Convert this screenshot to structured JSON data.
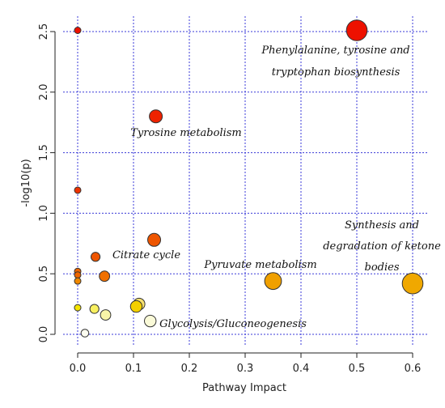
{
  "chart_data": {
    "type": "scatter",
    "xlabel": "Pathway Impact",
    "ylabel": "-log10(p)",
    "xlim": [
      -0.02,
      0.62
    ],
    "ylim": [
      -0.05,
      2.58
    ],
    "xticks": [
      0.0,
      0.1,
      0.2,
      0.3,
      0.4,
      0.5,
      0.6
    ],
    "yticks": [
      0.0,
      0.5,
      1.0,
      1.5,
      2.0,
      2.5
    ],
    "xtick_labels": [
      "0.0",
      "0.1",
      "0.2",
      "0.3",
      "0.4",
      "0.5",
      "0.6"
    ],
    "ytick_labels": [
      "0.0",
      "0.5",
      "1.0",
      "1.5",
      "2.0",
      "2.5"
    ],
    "grid": true,
    "points": [
      {
        "x": 0.5,
        "y": 2.51,
        "size": 1.6,
        "color": "#ee1100"
      },
      {
        "x": 0.0,
        "y": 2.51,
        "size": 0.5,
        "color": "#ee1100"
      },
      {
        "x": 0.14,
        "y": 1.8,
        "size": 1.0,
        "color": "#ee2200"
      },
      {
        "x": 0.0,
        "y": 1.19,
        "size": 0.5,
        "color": "#ee3300"
      },
      {
        "x": 0.137,
        "y": 0.78,
        "size": 1.0,
        "color": "#ee5500"
      },
      {
        "x": 0.032,
        "y": 0.64,
        "size": 0.7,
        "color": "#ee5500"
      },
      {
        "x": 0.0,
        "y": 0.52,
        "size": 0.5,
        "color": "#ee6600"
      },
      {
        "x": 0.0,
        "y": 0.49,
        "size": 0.5,
        "color": "#ee6600"
      },
      {
        "x": 0.048,
        "y": 0.48,
        "size": 0.8,
        "color": "#f07000"
      },
      {
        "x": 0.0,
        "y": 0.44,
        "size": 0.5,
        "color": "#f08800"
      },
      {
        "x": 0.35,
        "y": 0.44,
        "size": 1.3,
        "color": "#f0a000"
      },
      {
        "x": 0.6,
        "y": 0.42,
        "size": 1.6,
        "color": "#f0a800"
      },
      {
        "x": 0.11,
        "y": 0.25,
        "size": 0.9,
        "color": "#f6e070"
      },
      {
        "x": 0.105,
        "y": 0.23,
        "size": 0.9,
        "color": "#f4d000"
      },
      {
        "x": 0.0,
        "y": 0.22,
        "size": 0.5,
        "color": "#f4e400"
      },
      {
        "x": 0.03,
        "y": 0.21,
        "size": 0.7,
        "color": "#f8f060"
      },
      {
        "x": 0.05,
        "y": 0.16,
        "size": 0.8,
        "color": "#f8f4a8"
      },
      {
        "x": 0.13,
        "y": 0.11,
        "size": 0.9,
        "color": "#fafad8"
      },
      {
        "x": 0.013,
        "y": 0.01,
        "size": 0.6,
        "color": "#fcfcf0"
      }
    ],
    "annotations": [
      {
        "id": "ann1",
        "lines": [
          "Phenylalanine, tyrosine and",
          "tryptophan biosynthesis"
        ]
      },
      {
        "id": "ann2",
        "lines": [
          "Tyrosine metabolism"
        ]
      },
      {
        "id": "ann3",
        "lines": [
          "Citrate cycle"
        ]
      },
      {
        "id": "ann4",
        "lines": [
          "Pyruvate metabolism"
        ]
      },
      {
        "id": "ann5",
        "lines": [
          "Synthesis and",
          "degradation of ketone",
          "bodies"
        ]
      },
      {
        "id": "ann6",
        "lines": [
          "Glycolysis/Gluconeogenesis"
        ]
      }
    ]
  }
}
